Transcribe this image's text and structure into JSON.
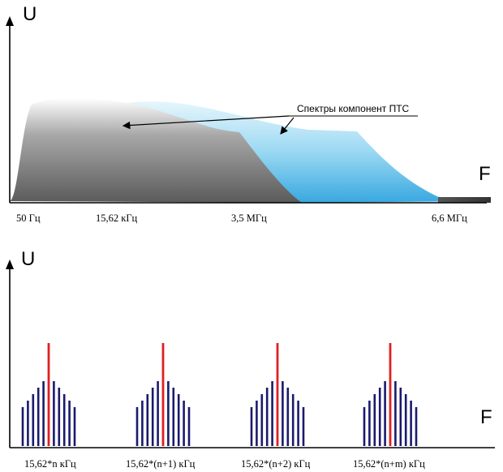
{
  "top_diagram": {
    "y_axis_label": "U",
    "x_axis_label": "F",
    "annotation": "Спектры компонент ПТС",
    "x_ticks": [
      "50 Гц",
      "15,62 кГц",
      "3,5 МГц",
      "6,6 МГц"
    ],
    "colors": {
      "gray_spectrum": "#6e6e6e",
      "blue_spectrum": "#45b4e6",
      "axis": "#000000"
    }
  },
  "bottom_diagram": {
    "y_axis_label": "U",
    "x_axis_label": "F",
    "x_ticks": [
      "15,62*n кГц",
      "15,62*(n+1) кГц",
      "15,62*(n+2) кГц",
      "15,62*(n+m) кГц"
    ],
    "groups": 4,
    "sidebands_per_side": 5,
    "colors": {
      "carrier": "#e02020",
      "sideband": "#1a1a6e",
      "axis": "#000000"
    }
  }
}
